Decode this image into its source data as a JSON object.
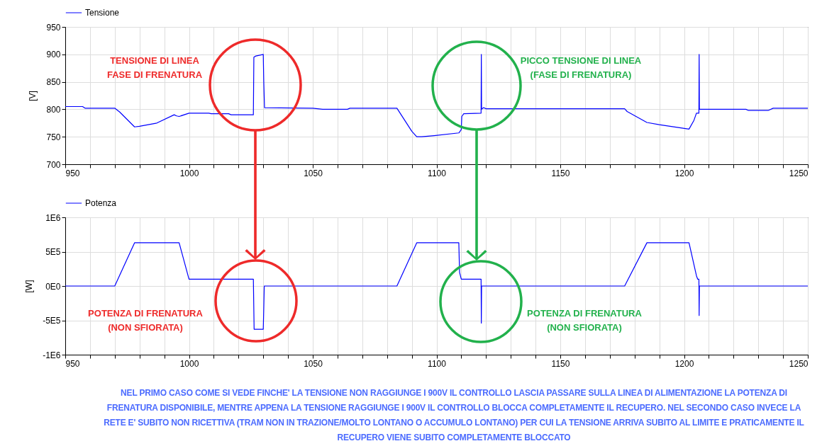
{
  "chart_data": [
    {
      "type": "line",
      "ylabel": "[V]",
      "legend": "top left",
      "grid": true,
      "x": [
        950,
        957,
        958,
        970,
        972,
        978,
        980,
        987,
        994,
        995,
        996,
        1000,
        1008,
        1009,
        1016,
        1017,
        1026,
        1026.2,
        1027,
        1030,
        1030.2,
        1030.5,
        1050,
        1054,
        1064,
        1065,
        1084,
        1090,
        1092,
        1094,
        1099,
        1109,
        1110,
        1110.2,
        1111,
        1118,
        1118.1,
        1118.2,
        1119,
        1120,
        1176,
        1177,
        1185,
        1190,
        1202,
        1204,
        1205,
        1206,
        1206.1,
        1206.2,
        1225,
        1226,
        1234,
        1236,
        1250
      ],
      "series": [
        {
          "name": "Tensione",
          "color": "#0000ff",
          "values": [
            805,
            805,
            802,
            802,
            795,
            768,
            769,
            775,
            790,
            788,
            787,
            793,
            793,
            792,
            792,
            790,
            790,
            895,
            897,
            900,
            850,
            803,
            802,
            800,
            800,
            802,
            802,
            760,
            750,
            750,
            752,
            757,
            763,
            787,
            792,
            793,
            900,
            800,
            803,
            801,
            801,
            796,
            776,
            772,
            764,
            780,
            793,
            793,
            900,
            800,
            800,
            798,
            798,
            802,
            802
          ]
        }
      ],
      "xlim": [
        950,
        1250
      ],
      "xticks": [
        950,
        {
          "value": 960,
          "label": null
        },
        {
          "value": 970,
          "label": null
        },
        {
          "value": 980,
          "label": null
        },
        {
          "value": 990,
          "label": null
        },
        1000,
        {
          "value": 1010,
          "label": null
        },
        {
          "value": 1020,
          "label": null
        },
        {
          "value": 1030,
          "label": null
        },
        {
          "value": 1040,
          "label": null
        },
        1050,
        {
          "value": 1060,
          "label": null
        },
        {
          "value": 1070,
          "label": null
        },
        {
          "value": 1080,
          "label": null
        },
        {
          "value": 1090,
          "label": null
        },
        1100,
        {
          "value": 1110,
          "label": null
        },
        {
          "value": 1120,
          "label": null
        },
        {
          "value": 1130,
          "label": null
        },
        {
          "value": 1140,
          "label": null
        },
        1150,
        {
          "value": 1160,
          "label": null
        },
        {
          "value": 1170,
          "label": null
        },
        {
          "value": 1180,
          "label": null
        },
        {
          "value": 1190,
          "label": null
        },
        1200,
        {
          "value": 1210,
          "label": null
        },
        {
          "value": 1220,
          "label": null
        },
        {
          "value": 1230,
          "label": null
        },
        {
          "value": 1240,
          "label": null
        },
        1250
      ],
      "ylim": [
        700,
        950
      ],
      "yticks": [
        700,
        750,
        800,
        850,
        900,
        950
      ],
      "annotations": [
        "TENSIONE DI LINEA\nFASE DI FRENATURA",
        "PICCO TENSIONE DI LINEA\n(FASE DI FRENATURA)"
      ]
    },
    {
      "type": "line",
      "ylabel": "[W]",
      "legend": "top left",
      "grid": true,
      "x": [
        950,
        970,
        978,
        996,
        1000,
        1026,
        1026.3,
        1030,
        1030.2,
        1030.4,
        1084,
        1092,
        1109,
        1109.3,
        1110,
        1118,
        1118.1,
        1118.2,
        1176,
        1185,
        1202,
        1205,
        1205.5,
        1206,
        1206.1,
        1206.2,
        1250
      ],
      "series": [
        {
          "name": "Potenza",
          "color": "#0000ff",
          "values": [
            0,
            0,
            630000,
            630000,
            100000,
            100000,
            -630000,
            -630000,
            -330000,
            0,
            0,
            630000,
            630000,
            200000,
            100000,
            100000,
            -540000,
            0,
            0,
            630000,
            630000,
            150000,
            100000,
            100000,
            -430000,
            0,
            0
          ]
        }
      ],
      "xlim": [
        950,
        1250
      ],
      "xticks": [
        950,
        {
          "value": 960,
          "label": null
        },
        {
          "value": 970,
          "label": null
        },
        {
          "value": 980,
          "label": null
        },
        {
          "value": 990,
          "label": null
        },
        1000,
        {
          "value": 1010,
          "label": null
        },
        {
          "value": 1020,
          "label": null
        },
        {
          "value": 1030,
          "label": null
        },
        {
          "value": 1040,
          "label": null
        },
        1050,
        {
          "value": 1060,
          "label": null
        },
        {
          "value": 1070,
          "label": null
        },
        {
          "value": 1080,
          "label": null
        },
        {
          "value": 1090,
          "label": null
        },
        1100,
        {
          "value": 1110,
          "label": null
        },
        {
          "value": 1120,
          "label": null
        },
        {
          "value": 1130,
          "label": null
        },
        {
          "value": 1140,
          "label": null
        },
        1150,
        {
          "value": 1160,
          "label": null
        },
        {
          "value": 1170,
          "label": null
        },
        {
          "value": 1180,
          "label": null
        },
        {
          "value": 1190,
          "label": null
        },
        1200,
        {
          "value": 1210,
          "label": null
        },
        {
          "value": 1220,
          "label": null
        },
        {
          "value": 1230,
          "label": null
        },
        {
          "value": 1240,
          "label": null
        },
        1250
      ],
      "ylim": [
        -1000000,
        1000000
      ],
      "yticks": [
        {
          "value": -1000000,
          "label": "-1E6"
        },
        {
          "value": -500000,
          "label": "-5E5"
        },
        {
          "value": 0,
          "label": "0E0"
        },
        {
          "value": 500000,
          "label": "5E5"
        },
        {
          "value": 1000000,
          "label": "1E6"
        }
      ],
      "annotations": [
        "POTENZA DI FRENATURA\n(NON SFIORATA)",
        "POTENZA DI FRENATURA\n(NON SFIORATA)",
        "NEL PRIMO CASO COME SI VEDE FINCHE' LA TENSIONE NON RAGGIUNGE I 900V IL CONTROLLO LASCIA PASSARE SULLA LINEA DI ALIMENTAZIONE LA POTENZA DI FRENATURA DISPONIBILE, MENTRE APPENA LA TENSIONE RAGGIUNGE I 900V IL CONTROLLO BLOCCA COMPLETAMENTE IL RECUPERO. NEL SECONDO CASO INVECE LA RETE E' SUBITO NON RICETTIVA (TRAM NON IN TRAZIONE/MOLTO LONTANO O ACCUMULO LONTANO) PER CUI LA TENSIONE ARRIVA SUBITO AL LIMITE E PRATICAMENTE IL RECUPERO VIENE SUBITO COMPLETAMENTE BLOCCATO"
      ]
    }
  ]
}
